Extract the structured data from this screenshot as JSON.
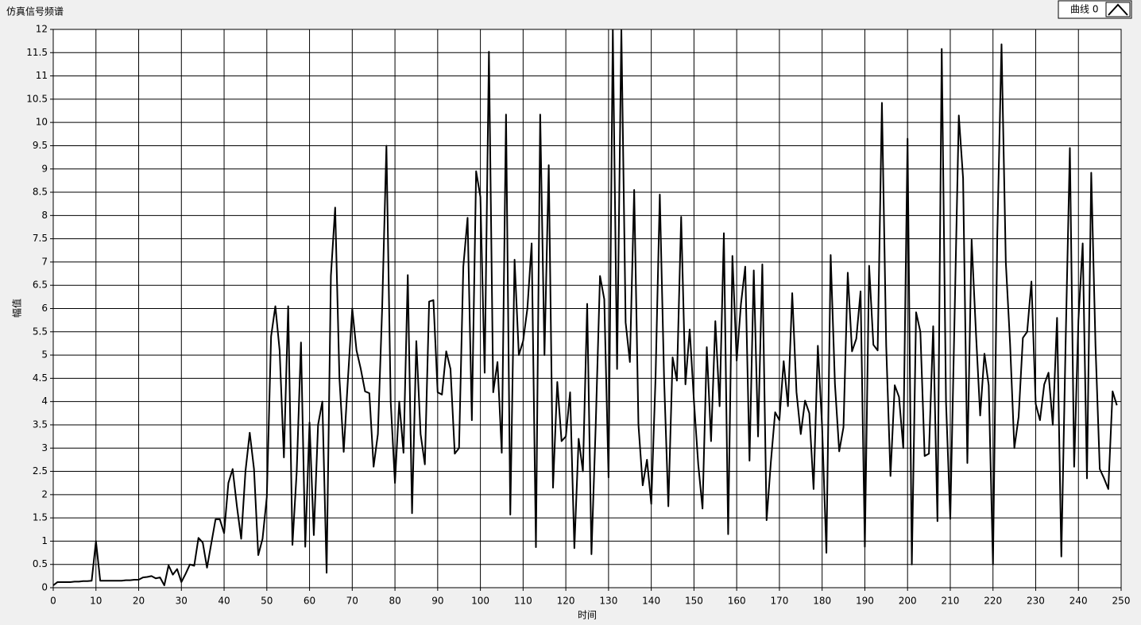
{
  "chart_data": {
    "type": "line",
    "title": "仿真信号频谱",
    "x_label": "时间",
    "y_label": "幅值",
    "x": [
      0,
      1,
      2,
      3,
      4,
      5,
      6,
      7,
      8,
      9,
      10,
      11,
      12,
      13,
      14,
      15,
      16,
      17,
      18,
      19,
      20,
      21,
      22,
      23,
      24,
      25,
      26,
      27,
      28,
      29,
      30,
      31,
      32,
      33,
      34,
      35,
      36,
      37,
      38,
      39,
      40,
      41,
      42,
      43,
      44,
      45,
      46,
      47,
      48,
      49,
      50,
      51,
      52,
      53,
      54,
      55,
      56,
      57,
      58,
      59,
      60,
      61,
      62,
      63,
      64,
      65,
      66,
      67,
      68,
      69,
      70,
      71,
      72,
      73,
      74,
      75,
      76,
      77,
      78,
      79,
      80,
      81,
      82,
      83,
      84,
      85,
      86,
      87,
      88,
      89,
      90,
      91,
      92,
      93,
      94,
      95,
      96,
      97,
      98,
      99,
      100,
      101,
      102,
      103,
      104,
      105,
      106,
      107,
      108,
      109,
      110,
      111,
      112,
      113,
      114,
      115,
      116,
      117,
      118,
      119,
      120,
      121,
      122,
      123,
      124,
      125,
      126,
      127,
      128,
      129,
      130,
      131,
      132,
      133,
      134,
      135,
      136,
      137,
      138,
      139,
      140,
      141,
      142,
      143,
      144,
      145,
      146,
      147,
      148,
      149,
      150,
      151,
      152,
      153,
      154,
      155,
      156,
      157,
      158,
      159,
      160,
      161,
      162,
      163,
      164,
      165,
      166,
      167,
      168,
      169,
      170,
      171,
      172,
      173,
      174,
      175,
      176,
      177,
      178,
      179,
      180,
      181,
      182,
      183,
      184,
      185,
      186,
      187,
      188,
      189,
      190,
      191,
      192,
      193,
      194,
      195,
      196,
      197,
      198,
      199,
      200,
      201,
      202,
      203,
      204,
      205,
      206,
      207,
      208,
      209,
      210,
      211,
      212,
      213,
      214,
      215,
      216,
      217,
      218,
      219,
      220,
      221,
      222,
      223,
      224,
      225,
      226,
      227,
      228,
      229,
      230,
      231,
      232,
      233,
      234,
      235,
      236,
      237,
      238,
      239,
      240,
      241,
      242,
      243,
      244,
      245,
      246,
      247,
      248,
      249
    ],
    "series": [
      {
        "name": "曲线 0",
        "color": "#000000",
        "values": [
          0.05,
          0.12,
          0.12,
          0.12,
          0.12,
          0.13,
          0.13,
          0.14,
          0.14,
          0.15,
          1.0,
          0.15,
          0.15,
          0.15,
          0.15,
          0.15,
          0.15,
          0.16,
          0.16,
          0.17,
          0.17,
          0.22,
          0.23,
          0.25,
          0.2,
          0.22,
          0.05,
          0.48,
          0.28,
          0.4,
          0.12,
          0.3,
          0.5,
          0.47,
          1.07,
          0.97,
          0.43,
          0.95,
          1.47,
          1.47,
          1.17,
          2.25,
          2.55,
          1.75,
          1.05,
          2.5,
          3.33,
          2.55,
          0.7,
          1.05,
          1.95,
          5.4,
          6.05,
          5.1,
          2.8,
          6.05,
          0.92,
          2.5,
          5.27,
          0.88,
          3.55,
          1.13,
          3.5,
          4.0,
          0.32,
          6.7,
          8.17,
          4.5,
          2.92,
          4.5,
          6.0,
          5.1,
          4.7,
          4.22,
          4.18,
          2.6,
          3.3,
          6.0,
          9.5,
          4.0,
          2.25,
          4.0,
          2.9,
          6.72,
          1.6,
          5.3,
          3.3,
          2.65,
          6.15,
          6.18,
          4.2,
          4.15,
          5.08,
          4.7,
          2.88,
          3.0,
          6.9,
          7.95,
          3.6,
          8.95,
          8.4,
          4.62,
          11.52,
          4.2,
          4.85,
          2.9,
          10.17,
          1.57,
          7.05,
          5.0,
          5.3,
          6.0,
          7.4,
          0.87,
          10.17,
          5.0,
          9.08,
          2.15,
          4.42,
          3.15,
          3.25,
          4.2,
          0.85,
          3.2,
          2.5,
          6.1,
          0.72,
          3.5,
          6.7,
          6.2,
          2.37,
          12.0,
          4.7,
          12.0,
          5.7,
          4.85,
          8.55,
          3.5,
          2.2,
          2.75,
          1.8,
          4.5,
          8.45,
          4.5,
          1.75,
          4.95,
          4.45,
          7.97,
          4.37,
          5.55,
          4.0,
          2.65,
          1.7,
          5.17,
          3.15,
          5.73,
          3.9,
          7.62,
          1.15,
          7.13,
          4.88,
          6.1,
          6.9,
          2.73,
          6.82,
          3.25,
          6.95,
          1.45,
          2.7,
          3.77,
          3.6,
          4.87,
          3.9,
          6.33,
          4.2,
          3.3,
          4.02,
          3.75,
          2.12,
          5.2,
          3.45,
          0.75,
          7.15,
          4.38,
          2.93,
          3.45,
          6.77,
          5.08,
          5.35,
          6.37,
          0.88,
          6.92,
          5.22,
          5.1,
          10.42,
          5.2,
          2.4,
          4.35,
          4.1,
          3.0,
          9.65,
          0.5,
          5.92,
          5.5,
          2.83,
          2.88,
          5.62,
          1.43,
          11.58,
          4.0,
          1.48,
          5.8,
          10.15,
          8.8,
          2.68,
          7.48,
          5.5,
          3.7,
          5.03,
          4.35,
          0.5,
          7.55,
          11.68,
          7.0,
          5.25,
          3.0,
          3.67,
          5.37,
          5.5,
          6.58,
          3.95,
          3.6,
          4.37,
          4.62,
          3.5,
          5.8,
          0.67,
          5.25,
          9.45,
          2.6,
          5.75,
          7.4,
          2.35,
          8.92,
          5.2,
          2.55,
          2.35,
          2.12,
          4.22,
          3.92
        ]
      }
    ],
    "xlim": [
      0,
      250
    ],
    "xticks": [
      0,
      10,
      20,
      30,
      40,
      50,
      60,
      70,
      80,
      90,
      100,
      110,
      120,
      130,
      140,
      150,
      160,
      170,
      180,
      190,
      200,
      210,
      220,
      230,
      240,
      250
    ],
    "ylim": [
      0,
      12
    ],
    "yticks": [
      0,
      0.5,
      1,
      1.5,
      2,
      2.5,
      3,
      3.5,
      4,
      4.5,
      5,
      5.5,
      6,
      6.5,
      7,
      7.5,
      8,
      8.5,
      9,
      9.5,
      10,
      10.5,
      11,
      11.5,
      12
    ],
    "grid": true,
    "legend": "top-right"
  }
}
